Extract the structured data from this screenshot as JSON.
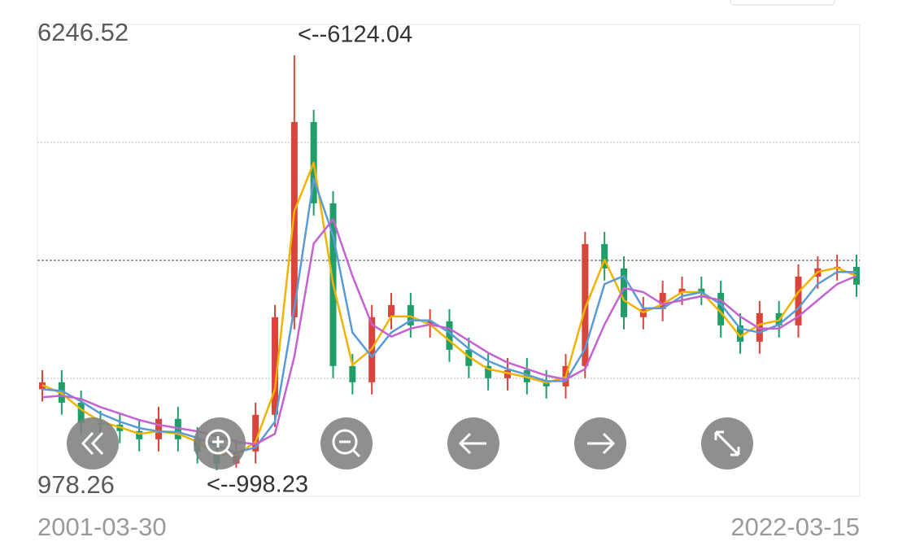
{
  "chart_data": {
    "type": "candlestick",
    "categories": [
      "2001-03-30",
      null,
      null,
      null,
      null,
      null,
      null,
      null,
      null,
      null,
      null,
      null,
      null,
      null,
      null,
      null,
      null,
      null,
      null,
      null,
      null,
      null,
      null,
      null,
      null,
      null,
      null,
      null,
      null,
      null,
      null,
      null,
      null,
      null,
      null,
      null,
      null,
      null,
      null,
      null,
      null,
      null,
      "2022-03-15"
    ],
    "open": [
      2000,
      2086,
      1834,
      1583,
      1563,
      1483,
      1382,
      1634,
      1382,
      1232,
      1081,
      1232,
      1684,
      2890,
      5302,
      4297,
      2287,
      2086,
      2890,
      3040,
      2789,
      2839,
      2488,
      2287,
      2136,
      2237,
      2086,
      2035,
      2287,
      3794,
      3493,
      2890,
      2990,
      3191,
      3242,
      3191,
      2789,
      2588,
      2940,
      2789,
      3392,
      3493,
      3513
    ],
    "high": [
      2236,
      2236,
      1984,
      1733,
      1713,
      1633,
      1784,
      1784,
      1532,
      1382,
      1382,
      1834,
      3040,
      6124.04,
      5452,
      4447,
      2437,
      3040,
      3190,
      3190,
      2989,
      2989,
      2638,
      2437,
      2387,
      2387,
      2236,
      2437,
      3944,
      3944,
      3643,
      3140,
      3341,
      3392,
      3392,
      3341,
      2939,
      3090,
      3090,
      3542,
      3643,
      3663,
      3663
    ],
    "low": [
      1850,
      1684,
      1433,
      1413,
      1333,
      1232,
      1232,
      1232,
      1082,
      998.23,
      1031,
      1082,
      1534,
      2740,
      4147,
      2137,
      1936,
      1936,
      2740,
      2639,
      2639,
      2338,
      2137,
      1986,
      1986,
      1936,
      1885,
      1885,
      2137,
      3343,
      2740,
      2740,
      2840,
      3041,
      3041,
      2639,
      2438,
      2438,
      2639,
      2639,
      3242,
      3343,
      3142
    ],
    "close": [
      2086,
      1834,
      1583,
      1563,
      1483,
      1382,
      1634,
      1382,
      1232,
      1081,
      1232,
      1684,
      2890,
      5302,
      4297,
      2287,
      2086,
      2890,
      3040,
      2789,
      2839,
      2488,
      2287,
      2136,
      2237,
      2086,
      2035,
      2287,
      3794,
      3493,
      2890,
      2990,
      3191,
      3242,
      3191,
      2789,
      2588,
      2940,
      2789,
      3392,
      3493,
      3513,
      3292
    ],
    "up_color": "#d9443b",
    "down_color": "#1f9e6a",
    "series": [
      {
        "color": "#f0b400",
        "values": [
          2050,
          1950,
          1750,
          1600,
          1530,
          1450,
          1480,
          1450,
          1350,
          1200,
          1180,
          1350,
          2000,
          4200,
          4800,
          3300,
          2300,
          2500,
          2900,
          2900,
          2800,
          2600,
          2400,
          2250,
          2200,
          2150,
          2080,
          2150,
          3000,
          3600,
          3100,
          2950,
          3050,
          3200,
          3200,
          2950,
          2650,
          2800,
          2850,
          3200,
          3450,
          3500,
          3400
        ]
      },
      {
        "color": "#5b9bd5",
        "values": [
          2000,
          1980,
          1850,
          1700,
          1600,
          1520,
          1480,
          1470,
          1400,
          1300,
          1220,
          1280,
          1600,
          3000,
          4600,
          3900,
          2700,
          2400,
          2700,
          2850,
          2850,
          2700,
          2500,
          2350,
          2250,
          2180,
          2100,
          2100,
          2500,
          3300,
          3400,
          3000,
          3000,
          3150,
          3200,
          3050,
          2750,
          2700,
          2800,
          3000,
          3300,
          3450,
          3450
        ]
      },
      {
        "color": "#c462cf",
        "values": [
          1900,
          1920,
          1880,
          1780,
          1700,
          1620,
          1560,
          1520,
          1480,
          1420,
          1350,
          1320,
          1450,
          2400,
          3800,
          4100,
          3400,
          2800,
          2650,
          2750,
          2800,
          2750,
          2600,
          2450,
          2330,
          2250,
          2170,
          2120,
          2250,
          2800,
          3250,
          3200,
          3050,
          3100,
          3150,
          3100,
          2900,
          2750,
          2750,
          2900,
          3100,
          3300,
          3400
        ]
      }
    ],
    "ylim": [
      978.26,
      6246.52
    ],
    "annotations": [
      "<--6124.04",
      "<--998.23"
    ]
  }
}
